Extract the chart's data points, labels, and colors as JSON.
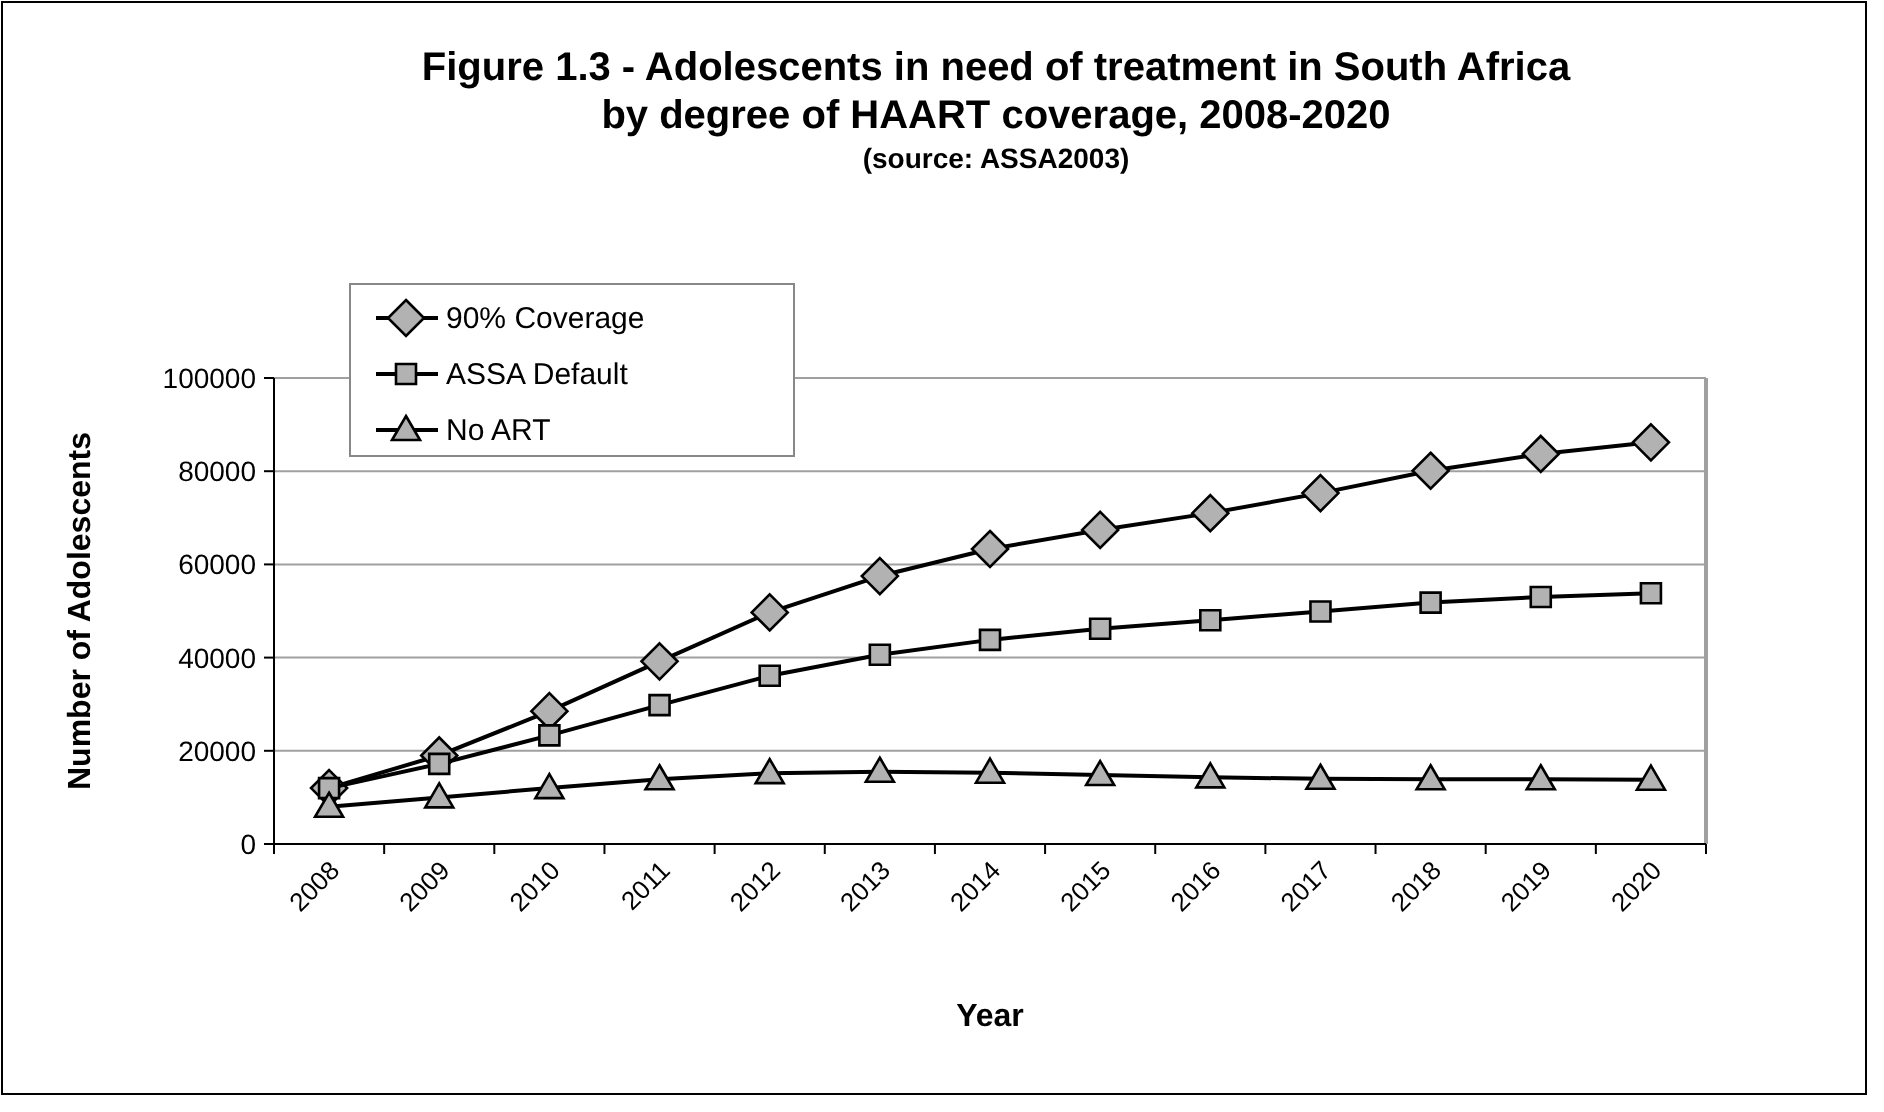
{
  "chart_data": {
    "type": "line",
    "title": "Figure 1.3 - Adolescents in need of treatment in South Africa\nby degree of HAART coverage, 2008-2020",
    "subtitle": "(source: ASSA2003)",
    "xlabel": "Year",
    "ylabel": "Number of Adolescents",
    "categories": [
      "2008",
      "2009",
      "2010",
      "2011",
      "2012",
      "2013",
      "2014",
      "2015",
      "2016",
      "2017",
      "2018",
      "2019",
      "2020"
    ],
    "series": [
      {
        "name": "90% Coverage",
        "color": "#000000",
        "marker": "diamond",
        "values": [
          12000,
          19000,
          28500,
          39200,
          49700,
          57500,
          63300,
          67400,
          71000,
          75300,
          80100,
          83700,
          86200
        ]
      },
      {
        "name": "ASSA Default",
        "color": "#000000",
        "marker": "square",
        "values": [
          12000,
          17200,
          23300,
          29800,
          36100,
          40600,
          43800,
          46200,
          48000,
          49900,
          51800,
          53000,
          53800
        ]
      },
      {
        "name": "No ART",
        "color": "#000000",
        "marker": "triangle",
        "values": [
          8000,
          10000,
          12000,
          13900,
          15200,
          15500,
          15300,
          14800,
          14300,
          14000,
          13900,
          13900,
          13800
        ]
      }
    ],
    "ylim": [
      0,
      100000
    ],
    "yticks": [
      0,
      20000,
      40000,
      60000,
      80000,
      100000
    ],
    "grid": "y",
    "legend": "top left",
    "line_style": "solid"
  }
}
